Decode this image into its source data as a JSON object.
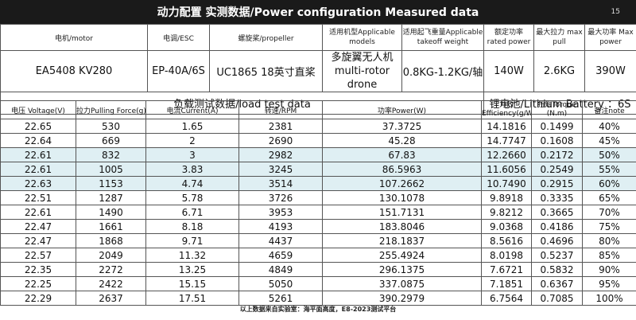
{
  "header": {
    "title": "动力配置 实测数据/Power configuration Measured data",
    "page_number": "15"
  },
  "spec": {
    "headers": [
      "电机/motor",
      "电调/ESC",
      "螺旋桨/propeller",
      "适用机型Applicable models",
      "适用起飞重量Applicable takeoff weight",
      "额定功率 rated power",
      "最大拉力 max pull",
      "最大功率 Max power"
    ],
    "values": [
      "EA5408 KV280",
      "EP-40A/6S",
      "UC1865  18英寸直桨",
      "多旋翼无人机 multi-rotor drone",
      "0.8KG-1.2KG/轴",
      "140W",
      "2.6KG",
      "390W"
    ]
  },
  "load_test_label": "负载测试数据/load test data",
  "battery_label": "锂电池/Lithium Battery  ：6S",
  "columns": [
    "电压 Voltage(V)",
    "拉力Pulling Force(g)",
    "电流Current(A)",
    "转速/RPM",
    "功率Power(W)",
    "力效 Efficiency(g/W)",
    "扭矩Torque (N.m)",
    "备注note"
  ],
  "rows": [
    [
      "22.65",
      "530",
      "1.65",
      "2381",
      "37.3725",
      "14.1816",
      "0.1499",
      "40%"
    ],
    [
      "22.64",
      "669",
      "2",
      "2690",
      "45.28",
      "14.7747",
      "0.1608",
      "45%"
    ],
    [
      "22.61",
      "832",
      "3",
      "2982",
      "67.83",
      "12.2660",
      "0.2172",
      "50%"
    ],
    [
      "22.61",
      "1005",
      "3.83",
      "3245",
      "86.5963",
      "11.6056",
      "0.2549",
      "55%"
    ],
    [
      "22.63",
      "1153",
      "4.74",
      "3514",
      "107.2662",
      "10.7490",
      "0.2915",
      "60%"
    ],
    [
      "22.51",
      "1287",
      "5.78",
      "3726",
      "130.1078",
      "9.8918",
      "0.3335",
      "65%"
    ],
    [
      "22.61",
      "1490",
      "6.71",
      "3953",
      "151.7131",
      "9.8212",
      "0.3665",
      "70%"
    ],
    [
      "22.47",
      "1661",
      "8.18",
      "4193",
      "183.8046",
      "9.0368",
      "0.4186",
      "75%"
    ],
    [
      "22.47",
      "1868",
      "9.71",
      "4437",
      "218.1837",
      "8.5616",
      "0.4696",
      "80%"
    ],
    [
      "22.57",
      "2049",
      "11.32",
      "4659",
      "255.4924",
      "8.0198",
      "0.5237",
      "85%"
    ],
    [
      "22.35",
      "2272",
      "13.25",
      "4849",
      "296.1375",
      "7.6721",
      "0.5832",
      "90%"
    ],
    [
      "22.25",
      "2422",
      "15.15",
      "5050",
      "337.0875",
      "7.1851",
      "0.6367",
      "95%"
    ],
    [
      "22.29",
      "2637",
      "17.51",
      "5261",
      "390.2979",
      "6.7564",
      "0.7085",
      "100%"
    ]
  ],
  "highlight_rows": [
    2,
    3,
    4
  ],
  "highlight_color": "#dfeff3",
  "footer_note": "以上数据来自实验室：海平面高度，E8-2023测试平台"
}
